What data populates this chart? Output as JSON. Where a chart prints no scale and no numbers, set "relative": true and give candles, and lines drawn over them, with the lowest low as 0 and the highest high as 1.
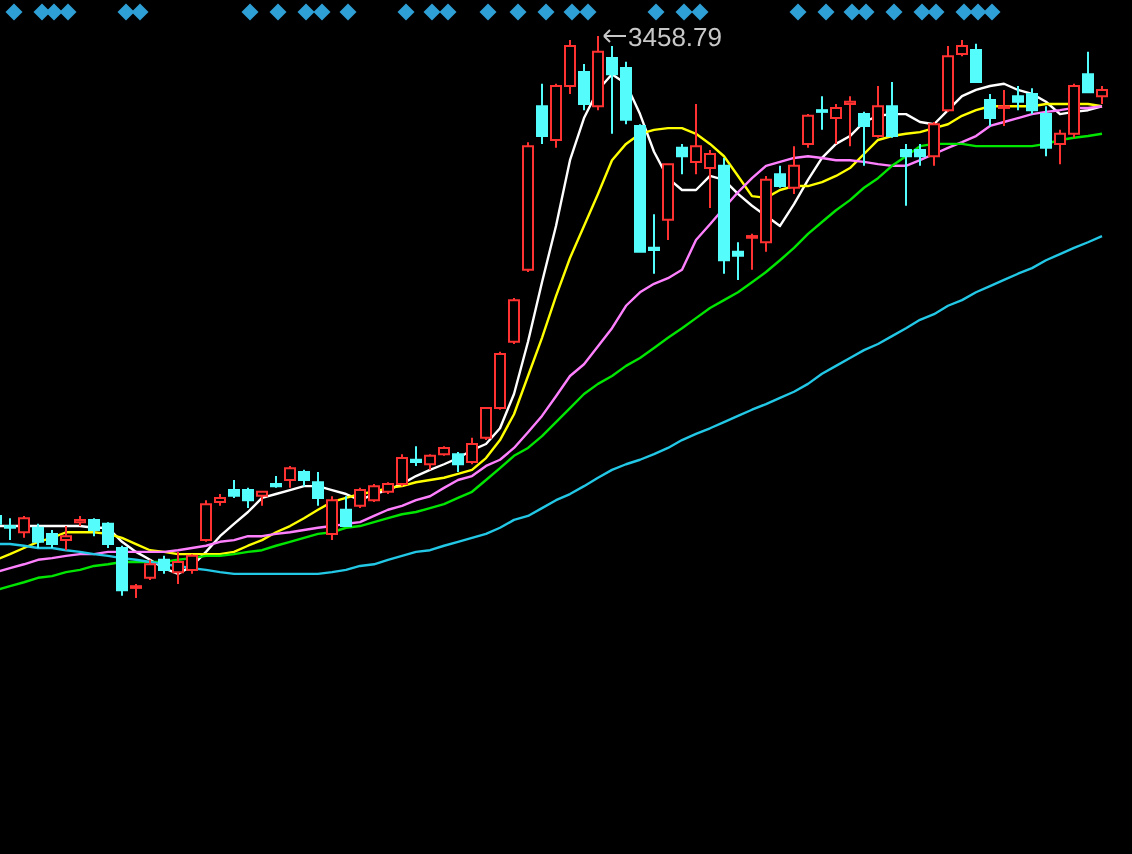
{
  "chart_data": {
    "type": "candlestick",
    "relative": true,
    "categories": [
      null,
      null,
      null,
      null,
      null,
      null,
      null,
      null,
      null,
      null,
      null,
      null,
      null,
      null,
      null,
      null,
      null,
      null,
      null,
      null,
      null,
      null,
      null,
      null,
      null,
      null,
      null,
      null,
      null,
      null,
      null,
      null,
      null,
      null,
      null,
      null,
      null,
      null,
      null,
      null,
      null,
      null,
      null,
      null,
      null,
      null,
      null,
      null,
      null,
      null,
      null,
      null,
      null,
      null,
      null,
      null,
      null,
      null,
      null,
      null,
      null,
      null,
      null,
      null,
      null,
      null,
      null,
      null,
      null,
      null,
      null,
      null,
      null,
      null,
      null,
      null,
      null,
      null,
      null,
      null
    ],
    "ohlc": [
      [
        0.146,
        0.153,
        0.125,
        0.132
      ],
      [
        0.128,
        0.142,
        0.103,
        0.125
      ],
      [
        0.117,
        0.146,
        0.107,
        0.142
      ],
      [
        0.125,
        0.132,
        0.089,
        0.1
      ],
      [
        0.114,
        0.121,
        0.089,
        0.096
      ],
      [
        0.103,
        0.128,
        0.085,
        0.11
      ],
      [
        0.135,
        0.146,
        0.128,
        0.139
      ],
      [
        0.139,
        0.142,
        0.11,
        0.121
      ],
      [
        0.132,
        0.135,
        0.089,
        0.096
      ],
      [
        0.089,
        0.093,
        0.004,
        0.014
      ],
      [
        0.018,
        0.025,
        0,
        0.021
      ],
      [
        0.036,
        0.068,
        0.032,
        0.06
      ],
      [
        0.068,
        0.075,
        0.043,
        0.05
      ],
      [
        0.046,
        0.082,
        0.025,
        0.064
      ],
      [
        0.05,
        0.078,
        0.043,
        0.075
      ],
      [
        0.103,
        0.174,
        0.1,
        0.167
      ],
      [
        0.171,
        0.185,
        0.164,
        0.178
      ],
      [
        0.192,
        0.21,
        0.178,
        0.182
      ],
      [
        0.192,
        0.196,
        0.16,
        0.174
      ],
      [
        0.182,
        0.189,
        0.164,
        0.189
      ],
      [
        0.203,
        0.217,
        0.196,
        0.199
      ],
      [
        0.21,
        0.235,
        0.196,
        0.231
      ],
      [
        0.224,
        0.228,
        0.199,
        0.21
      ],
      [
        0.206,
        0.224,
        0.164,
        0.178
      ],
      [
        0.114,
        0.181,
        0.103,
        0.174
      ],
      [
        0.157,
        0.181,
        0.128,
        0.128
      ],
      [
        0.164,
        0.196,
        0.16,
        0.192
      ],
      [
        0.174,
        0.203,
        0.171,
        0.199
      ],
      [
        0.189,
        0.206,
        0.185,
        0.203
      ],
      [
        0.203,
        0.256,
        0.199,
        0.249
      ],
      [
        0.246,
        0.27,
        0.235,
        0.242
      ],
      [
        0.238,
        0.256,
        0.228,
        0.253
      ],
      [
        0.256,
        0.27,
        0.253,
        0.267
      ],
      [
        0.256,
        0.26,
        0.224,
        0.238
      ],
      [
        0.242,
        0.285,
        0.238,
        0.274
      ],
      [
        0.285,
        0.338,
        0.281,
        0.338
      ],
      [
        0.338,
        0.438,
        0.335,
        0.434
      ],
      [
        0.456,
        0.534,
        0.452,
        0.53
      ],
      [
        0.584,
        0.811,
        0.58,
        0.804
      ],
      [
        0.875,
        0.915,
        0.808,
        0.822
      ],
      [
        0.815,
        0.915,
        0.801,
        0.911
      ],
      [
        0.911,
        0.993,
        0.897,
        0.982
      ],
      [
        0.936,
        0.95,
        0.868,
        0.879
      ],
      [
        0.875,
        1,
        0.868,
        0.972
      ],
      [
        0.961,
        0.982,
        0.826,
        0.932
      ],
      [
        0.943,
        0.954,
        0.843,
        0.851
      ],
      [
        0.84,
        0.843,
        0.616,
        0.616
      ],
      [
        0.623,
        0.683,
        0.577,
        0.619
      ],
      [
        0.673,
        0.772,
        0.637,
        0.772
      ],
      [
        0.801,
        0.808,
        0.754,
        0.786
      ],
      [
        0.776,
        0.879,
        0.754,
        0.804
      ],
      [
        0.765,
        0.797,
        0.694,
        0.79
      ],
      [
        0.769,
        0.783,
        0.577,
        0.601
      ],
      [
        0.616,
        0.633,
        0.566,
        0.609
      ],
      [
        0.641,
        0.648,
        0.584,
        0.644
      ],
      [
        0.633,
        0.751,
        0.616,
        0.744
      ],
      [
        0.754,
        0.769,
        0.73,
        0.733
      ],
      [
        0.73,
        0.804,
        0.719,
        0.769
      ],
      [
        0.808,
        0.861,
        0.801,
        0.858
      ],
      [
        0.868,
        0.893,
        0.833,
        0.865
      ],
      [
        0.854,
        0.879,
        0.808,
        0.872
      ],
      [
        0.879,
        0.893,
        0.804,
        0.883
      ],
      [
        0.861,
        0.865,
        0.769,
        0.84
      ],
      [
        0.822,
        0.911,
        0.819,
        0.875
      ],
      [
        0.875,
        0.918,
        0.819,
        0.822
      ],
      [
        0.797,
        0.808,
        0.698,
        0.786
      ],
      [
        0.797,
        0.808,
        0.769,
        0.786
      ],
      [
        0.786,
        0.847,
        0.769,
        0.843
      ],
      [
        0.868,
        0.982,
        0.865,
        0.964
      ],
      [
        0.968,
        0.993,
        0.964,
        0.982
      ],
      [
        0.975,
        0.986,
        0.918,
        0.918
      ],
      [
        0.886,
        0.897,
        0.84,
        0.854
      ],
      [
        0.872,
        0.904,
        0.84,
        0.875
      ],
      [
        0.893,
        0.911,
        0.868,
        0.883
      ],
      [
        0.897,
        0.907,
        0.861,
        0.868
      ],
      [
        0.861,
        0.875,
        0.786,
        0.801
      ],
      [
        0.808,
        0.833,
        0.772,
        0.826
      ],
      [
        0.826,
        0.915,
        0.819,
        0.911
      ],
      [
        0.932,
        0.972,
        0.9,
        0.9
      ],
      [
        0.893,
        0.911,
        0.879,
        0.904
      ]
    ],
    "colors": [
      "#54fcfc",
      "#54fcfc",
      "#ff3232",
      "#54fcfc",
      "#54fcfc",
      "#ff3232",
      "#ff3232",
      "#54fcfc",
      "#54fcfc",
      "#54fcfc",
      "#ff3232",
      "#ff3232",
      "#54fcfc",
      "#ff3232",
      "#ff3232",
      "#ff3232",
      "#ff3232",
      "#54fcfc",
      "#54fcfc",
      "#ff3232",
      "#54fcfc",
      "#ff3232",
      "#54fcfc",
      "#54fcfc",
      "#ff3232",
      "#54fcfc",
      "#ff3232",
      "#ff3232",
      "#ff3232",
      "#ff3232",
      "#54fcfc",
      "#ff3232",
      "#ff3232",
      "#54fcfc",
      "#ff3232",
      "#ff3232",
      "#ff3232",
      "#ff3232",
      "#ff3232",
      "#54fcfc",
      "#ff3232",
      "#ff3232",
      "#54fcfc",
      "#ff3232",
      "#54fcfc",
      "#54fcfc",
      "#54fcfc",
      "#54fcfc",
      "#ff3232",
      "#54fcfc",
      "#ff3232",
      "#ff3232",
      "#54fcfc",
      "#54fcfc",
      "#ff3232",
      "#ff3232",
      "#54fcfc",
      "#ff3232",
      "#ff3232",
      "#54fcfc",
      "#ff3232",
      "#ff3232",
      "#54fcfc",
      "#ff3232",
      "#54fcfc",
      "#54fcfc",
      "#54fcfc",
      "#ff3232",
      "#ff3232",
      "#ff3232",
      "#54fcfc",
      "#54fcfc",
      "#ff3232",
      "#54fcfc",
      "#54fcfc",
      "#54fcfc",
      "#ff3232",
      "#ff3232",
      "#54fcfc",
      "#ff3232"
    ],
    "series": [
      {
        "type": "line",
        "color": "#ffffff",
        "values": [
          0.128,
          0.128,
          0.128,
          0.128,
          0.128,
          0.128,
          0.128,
          0.125,
          0.125,
          0.1,
          0.082,
          0.068,
          0.053,
          0.043,
          0.057,
          0.082,
          0.11,
          0.132,
          0.153,
          0.178,
          0.185,
          0.192,
          0.199,
          0.199,
          0.192,
          0.185,
          0.174,
          0.185,
          0.192,
          0.203,
          0.217,
          0.228,
          0.238,
          0.249,
          0.263,
          0.274,
          0.302,
          0.363,
          0.456,
          0.562,
          0.662,
          0.779,
          0.854,
          0.904,
          0.932,
          0.915,
          0.861,
          0.794,
          0.747,
          0.726,
          0.726,
          0.751,
          0.744,
          0.719,
          0.698,
          0.68,
          0.662,
          0.701,
          0.744,
          0.783,
          0.808,
          0.822,
          0.847,
          0.858,
          0.861,
          0.861,
          0.847,
          0.843,
          0.868,
          0.893,
          0.904,
          0.911,
          0.915,
          0.904,
          0.897,
          0.883,
          0.861,
          0.865,
          0.868,
          0.875
        ]
      },
      {
        "type": "line",
        "color": "#ffff00",
        "values": [
          0.068,
          0.078,
          0.089,
          0.1,
          0.107,
          0.117,
          0.117,
          0.117,
          0.114,
          0.107,
          0.096,
          0.085,
          0.082,
          0.078,
          0.078,
          0.078,
          0.078,
          0.082,
          0.093,
          0.103,
          0.117,
          0.128,
          0.142,
          0.157,
          0.171,
          0.178,
          0.185,
          0.189,
          0.196,
          0.199,
          0.206,
          0.21,
          0.214,
          0.221,
          0.228,
          0.249,
          0.281,
          0.327,
          0.395,
          0.463,
          0.537,
          0.605,
          0.662,
          0.719,
          0.779,
          0.808,
          0.826,
          0.833,
          0.836,
          0.836,
          0.826,
          0.808,
          0.786,
          0.751,
          0.715,
          0.712,
          0.726,
          0.733,
          0.733,
          0.74,
          0.751,
          0.765,
          0.79,
          0.815,
          0.822,
          0.826,
          0.829,
          0.836,
          0.843,
          0.858,
          0.868,
          0.875,
          0.875,
          0.875,
          0.875,
          0.879,
          0.879,
          0.879,
          0.879,
          0.875
        ]
      },
      {
        "type": "line",
        "color": "#ff80ff",
        "values": [
          0.046,
          0.053,
          0.06,
          0.068,
          0.071,
          0.075,
          0.078,
          0.078,
          0.082,
          0.082,
          0.082,
          0.082,
          0.082,
          0.085,
          0.089,
          0.093,
          0.1,
          0.103,
          0.11,
          0.11,
          0.114,
          0.117,
          0.121,
          0.125,
          0.128,
          0.132,
          0.135,
          0.146,
          0.157,
          0.164,
          0.174,
          0.181,
          0.196,
          0.21,
          0.217,
          0.235,
          0.246,
          0.267,
          0.295,
          0.324,
          0.359,
          0.395,
          0.416,
          0.448,
          0.48,
          0.52,
          0.544,
          0.559,
          0.569,
          0.584,
          0.637,
          0.665,
          0.694,
          0.722,
          0.747,
          0.769,
          0.776,
          0.783,
          0.786,
          0.783,
          0.779,
          0.779,
          0.776,
          0.772,
          0.769,
          0.769,
          0.779,
          0.79,
          0.801,
          0.811,
          0.822,
          0.84,
          0.847,
          0.854,
          0.861,
          0.865,
          0.868,
          0.872,
          0.872,
          0.875
        ]
      },
      {
        "type": "line",
        "color": "#00e600",
        "values": [
          0.014,
          0.021,
          0.028,
          0.036,
          0.039,
          0.046,
          0.05,
          0.057,
          0.06,
          0.064,
          0.064,
          0.064,
          0.064,
          0.068,
          0.071,
          0.075,
          0.075,
          0.078,
          0.082,
          0.085,
          0.093,
          0.1,
          0.107,
          0.114,
          0.117,
          0.125,
          0.128,
          0.135,
          0.142,
          0.149,
          0.153,
          0.16,
          0.167,
          0.178,
          0.189,
          0.21,
          0.231,
          0.253,
          0.267,
          0.288,
          0.313,
          0.338,
          0.363,
          0.381,
          0.395,
          0.413,
          0.427,
          0.445,
          0.463,
          0.48,
          0.498,
          0.516,
          0.53,
          0.544,
          0.562,
          0.58,
          0.601,
          0.623,
          0.648,
          0.669,
          0.69,
          0.708,
          0.73,
          0.747,
          0.769,
          0.786,
          0.804,
          0.808,
          0.808,
          0.808,
          0.804,
          0.804,
          0.804,
          0.804,
          0.804,
          0.808,
          0.815,
          0.819,
          0.822,
          0.826
        ]
      },
      {
        "type": "line",
        "color": "#22c8e6",
        "values": [
          0.096,
          0.096,
          0.093,
          0.089,
          0.089,
          0.085,
          0.082,
          0.078,
          0.075,
          0.071,
          0.068,
          0.064,
          0.06,
          0.057,
          0.053,
          0.05,
          0.046,
          0.043,
          0.043,
          0.043,
          0.043,
          0.043,
          0.043,
          0.043,
          0.046,
          0.05,
          0.057,
          0.06,
          0.068,
          0.075,
          0.082,
          0.085,
          0.093,
          0.1,
          0.107,
          0.114,
          0.125,
          0.139,
          0.146,
          0.16,
          0.174,
          0.185,
          0.199,
          0.214,
          0.228,
          0.238,
          0.246,
          0.256,
          0.267,
          0.281,
          0.292,
          0.302,
          0.313,
          0.324,
          0.335,
          0.345,
          0.356,
          0.367,
          0.381,
          0.399,
          0.413,
          0.427,
          0.441,
          0.452,
          0.466,
          0.48,
          0.495,
          0.505,
          0.52,
          0.53,
          0.544,
          0.555,
          0.566,
          0.577,
          0.587,
          0.601,
          0.612,
          0.623,
          0.633,
          0.644
        ]
      }
    ],
    "annotations": [
      "3458.79"
    ]
  }
}
